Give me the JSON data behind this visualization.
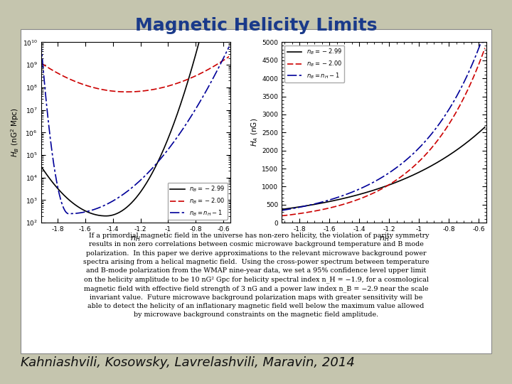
{
  "title": "Magnetic Helicity Limits",
  "title_color": "#1a3a8a",
  "title_fontsize": 18,
  "title_fontweight": "bold",
  "bg_color": "#c5c5ae",
  "author_text": "Kahniashvili, Kosowsky, Lavrelashvili, Maravin, 2014",
  "author_fontsize": 13,
  "abstract_text": "   If a primordial magnetic field in the universe has non-zero helicity, the violation of parity symmetry\nresults in non zero correlations between cosmic microwave background temperature and B mode\npolarization.  In this paper we derive approximations to the relevant microwave background power\nspectra arising from a helical magnetic field.  Using the cross-power spectrum between temperature\nand B-mode polarization from the WMAP nine-year data, we set a 95% confidence level upper limit\non the helicity amplitude to be 10 nG² Gpc for helicity spectral index n_H = −1.9, for a cosmological\nmagnetic field with effective field strength of 3 nG and a power law index n_B = −2.9 near the scale\ninvariant value.  Future microwave background polarization maps with greater sensitivity will be\nable to detect the helicity of an inflationary magnetic field well below the maximum value allowed\nby microwave background constraints on the magnetic field amplitude.",
  "abstract_fontsize": 6.8,
  "left_plot": {
    "xlim": [
      -1.92,
      -0.55
    ],
    "xticks": [
      -1.8,
      -1.6,
      -1.4,
      -1.2,
      -1.0,
      -0.8,
      -0.6
    ],
    "xticklabels": [
      "-1.8",
      "-1.6",
      "-1.4",
      "-1.2",
      "-1",
      "-0.8",
      "-0.6"
    ],
    "ylim_log": [
      100.0,
      10000000000.0
    ],
    "curve1_color": "#000000",
    "curve2_color": "#cc0000",
    "curve3_color": "#000099"
  },
  "right_plot": {
    "xlim": [
      -1.92,
      -0.55
    ],
    "xticks": [
      -1.8,
      -1.6,
      -1.4,
      -1.2,
      -1.0,
      -0.8,
      -0.6
    ],
    "xticklabels": [
      "-1.8",
      "-1.6",
      "-1.4",
      "-1.2",
      "-1",
      "-0.8",
      "-0.6"
    ],
    "ylim": [
      0,
      5000
    ],
    "yticks": [
      0,
      500,
      1000,
      1500,
      2000,
      2500,
      3000,
      3500,
      4000,
      4500,
      5000
    ],
    "curve1_color": "#000000",
    "curve2_color": "#cc0000",
    "curve3_color": "#000099"
  }
}
